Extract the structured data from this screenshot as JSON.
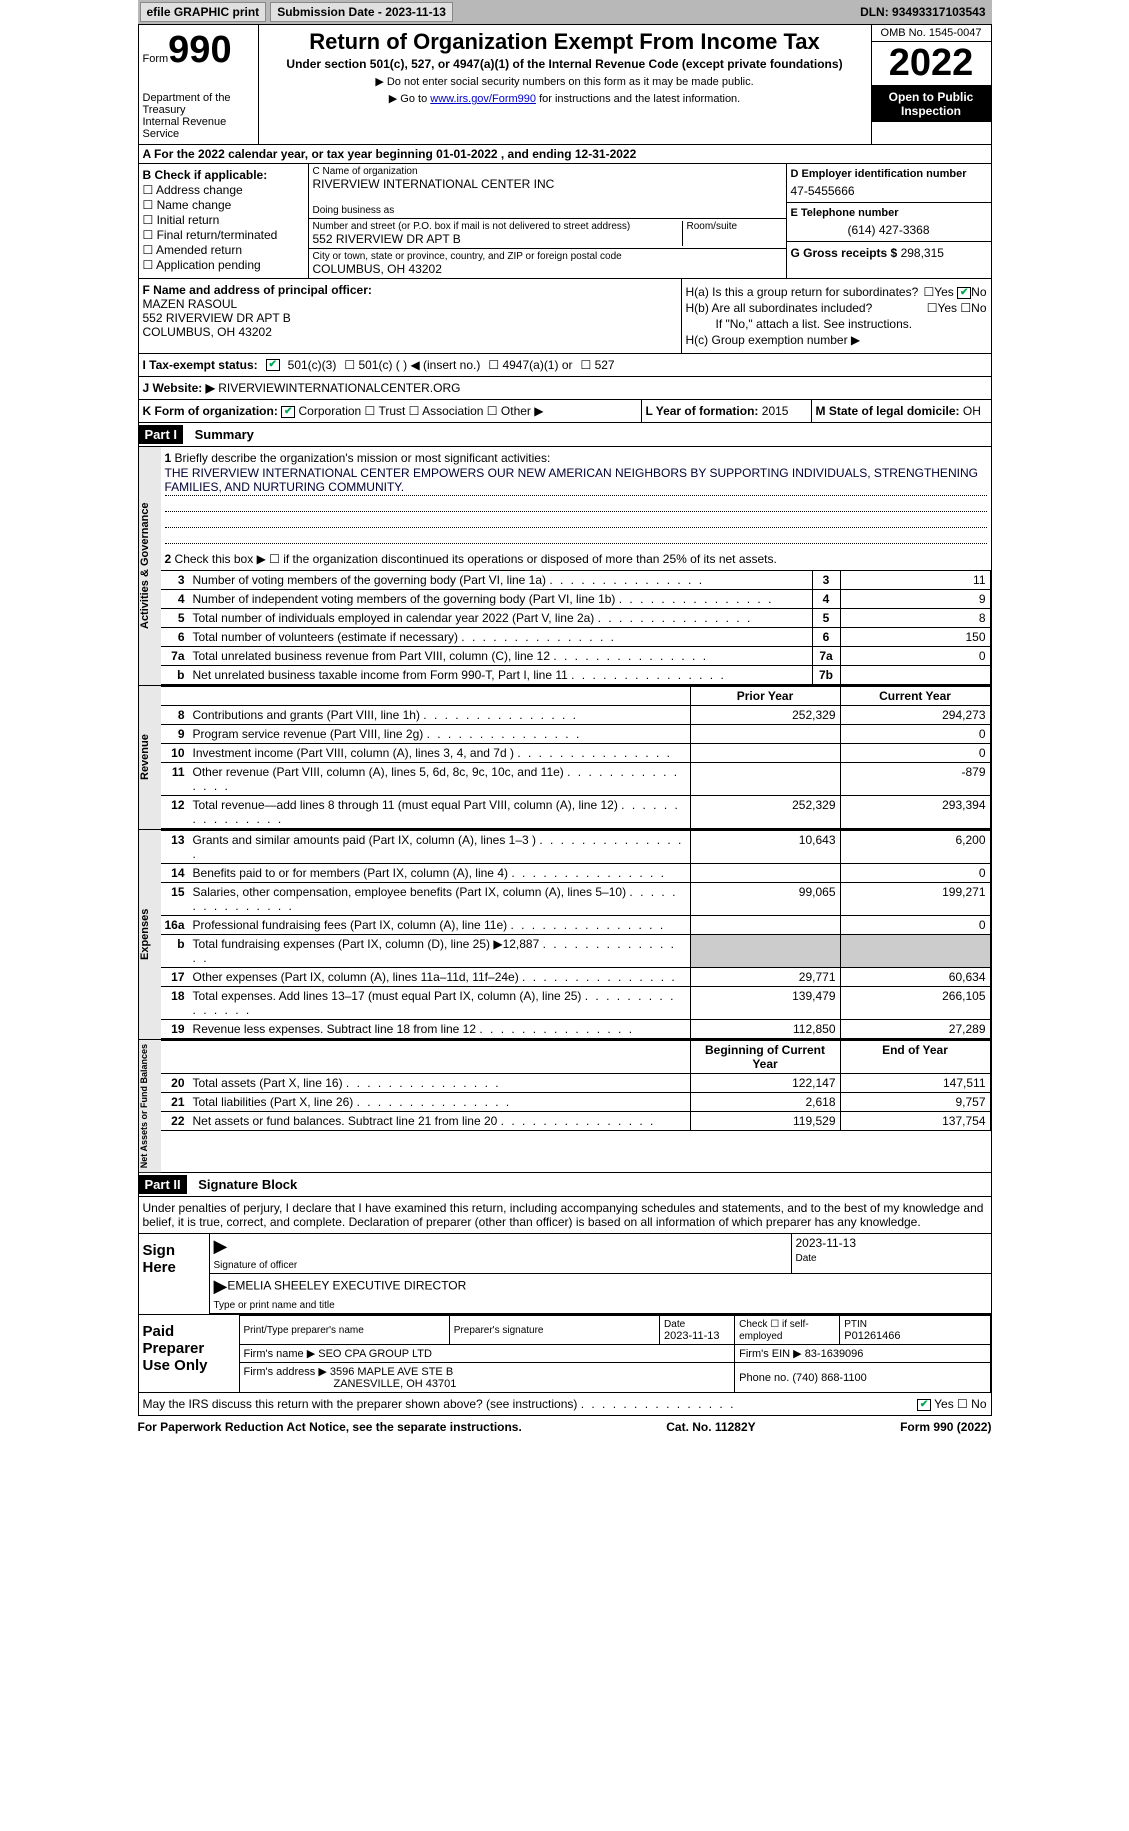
{
  "topbar": {
    "efile": "efile GRAPHIC print",
    "submission": "Submission Date - 2023-11-13",
    "dln": "DLN: 93493317103543"
  },
  "header": {
    "form_label": "Form",
    "form_number": "990",
    "dept": "Department of the Treasury",
    "irs": "Internal Revenue Service",
    "title": "Return of Organization Exempt From Income Tax",
    "subtitle": "Under section 501(c), 527, or 4947(a)(1) of the Internal Revenue Code (except private foundations)",
    "note1": "▶ Do not enter social security numbers on this form as it may be made public.",
    "note2_pre": "▶ Go to ",
    "note2_link": "www.irs.gov/Form990",
    "note2_post": " for instructions and the latest information.",
    "omb": "OMB No. 1545-0047",
    "year": "2022",
    "inspect": "Open to Public Inspection"
  },
  "row_a": "A For the 2022 calendar year, or tax year beginning 01-01-2022    , and ending 12-31-2022",
  "section_b": {
    "title": "B Check if applicable:",
    "items": [
      "Address change",
      "Name change",
      "Initial return",
      "Final return/terminated",
      "Amended return",
      "Application pending"
    ]
  },
  "section_c": {
    "name_label": "C Name of organization",
    "name": "RIVERVIEW INTERNATIONAL CENTER INC",
    "dba_label": "Doing business as",
    "addr_label": "Number and street (or P.O. box if mail is not delivered to street address)",
    "room_label": "Room/suite",
    "addr": "552 RIVERVIEW DR APT B",
    "city_label": "City or town, state or province, country, and ZIP or foreign postal code",
    "city": "COLUMBUS, OH  43202"
  },
  "section_d": {
    "ein_label": "D Employer identification number",
    "ein": "47-5455666",
    "phone_label": "E Telephone number",
    "phone": "(614) 427-3368",
    "gross_label": "G Gross receipts $",
    "gross": "298,315"
  },
  "section_f": {
    "label": "F Name and address of principal officer:",
    "name": "MAZEN RASOUL",
    "addr1": "552 RIVERVIEW DR APT B",
    "addr2": "COLUMBUS, OH  43202"
  },
  "section_h": {
    "ha": "H(a)  Is this a group return for subordinates?",
    "hb": "H(b)  Are all subordinates included?",
    "hb_note": "If \"No,\" attach a list. See instructions.",
    "hc": "H(c)  Group exemption number ▶",
    "yes": "Yes",
    "no": "No"
  },
  "row_i": {
    "label": "I   Tax-exempt status:",
    "opt1": "501(c)(3)",
    "opt2": "501(c) (  ) ◀ (insert no.)",
    "opt3": "4947(a)(1) or",
    "opt4": "527"
  },
  "row_j": {
    "label": "J   Website: ▶",
    "value": "RIVERVIEWINTERNATIONALCENTER.ORG"
  },
  "row_k": {
    "label": "K Form of organization:",
    "opts": [
      "Corporation",
      "Trust",
      "Association",
      "Other ▶"
    ]
  },
  "row_l": {
    "label": "L Year of formation:",
    "value": "2015"
  },
  "row_m": {
    "label": "M State of legal domicile:",
    "value": "OH"
  },
  "part1": {
    "header": "Part I",
    "title": "Summary",
    "line1_label": "Briefly describe the organization's mission or most significant activities:",
    "mission": "THE RIVERVIEW INTERNATIONAL CENTER EMPOWERS OUR NEW AMERICAN NEIGHBORS BY SUPPORTING INDIVIDUALS, STRENGTHENING FAMILIES, AND NURTURING COMMUNITY.",
    "line2": "Check this box ▶ ☐ if the organization discontinued its operations or disposed of more than 25% of its net assets.",
    "sides": {
      "gov": "Activities & Governance",
      "rev": "Revenue",
      "exp": "Expenses",
      "net": "Net Assets or Fund Balances"
    },
    "col_headers": {
      "prior": "Prior Year",
      "current": "Current Year",
      "begin": "Beginning of Current Year",
      "end": "End of Year"
    },
    "rows_gov": [
      {
        "n": "3",
        "d": "Number of voting members of the governing body (Part VI, line 1a)",
        "b": "3",
        "v": "11"
      },
      {
        "n": "4",
        "d": "Number of independent voting members of the governing body (Part VI, line 1b)",
        "b": "4",
        "v": "9"
      },
      {
        "n": "5",
        "d": "Total number of individuals employed in calendar year 2022 (Part V, line 2a)",
        "b": "5",
        "v": "8"
      },
      {
        "n": "6",
        "d": "Total number of volunteers (estimate if necessary)",
        "b": "6",
        "v": "150"
      },
      {
        "n": "7a",
        "d": "Total unrelated business revenue from Part VIII, column (C), line 12",
        "b": "7a",
        "v": "0"
      },
      {
        "n": "b",
        "d": "Net unrelated business taxable income from Form 990-T, Part I, line 11",
        "b": "7b",
        "v": ""
      }
    ],
    "rows_rev": [
      {
        "n": "8",
        "d": "Contributions and grants (Part VIII, line 1h)",
        "p": "252,329",
        "c": "294,273"
      },
      {
        "n": "9",
        "d": "Program service revenue (Part VIII, line 2g)",
        "p": "",
        "c": "0"
      },
      {
        "n": "10",
        "d": "Investment income (Part VIII, column (A), lines 3, 4, and 7d )",
        "p": "",
        "c": "0"
      },
      {
        "n": "11",
        "d": "Other revenue (Part VIII, column (A), lines 5, 6d, 8c, 9c, 10c, and 11e)",
        "p": "",
        "c": "-879"
      },
      {
        "n": "12",
        "d": "Total revenue—add lines 8 through 11 (must equal Part VIII, column (A), line 12)",
        "p": "252,329",
        "c": "293,394"
      }
    ],
    "rows_exp": [
      {
        "n": "13",
        "d": "Grants and similar amounts paid (Part IX, column (A), lines 1–3 )",
        "p": "10,643",
        "c": "6,200"
      },
      {
        "n": "14",
        "d": "Benefits paid to or for members (Part IX, column (A), line 4)",
        "p": "",
        "c": "0"
      },
      {
        "n": "15",
        "d": "Salaries, other compensation, employee benefits (Part IX, column (A), lines 5–10)",
        "p": "99,065",
        "c": "199,271"
      },
      {
        "n": "16a",
        "d": "Professional fundraising fees (Part IX, column (A), line 11e)",
        "p": "",
        "c": "0"
      },
      {
        "n": "b",
        "d": "Total fundraising expenses (Part IX, column (D), line 25) ▶12,887",
        "p": "shaded",
        "c": "shaded"
      },
      {
        "n": "17",
        "d": "Other expenses (Part IX, column (A), lines 11a–11d, 11f–24e)",
        "p": "29,771",
        "c": "60,634"
      },
      {
        "n": "18",
        "d": "Total expenses. Add lines 13–17 (must equal Part IX, column (A), line 25)",
        "p": "139,479",
        "c": "266,105"
      },
      {
        "n": "19",
        "d": "Revenue less expenses. Subtract line 18 from line 12",
        "p": "112,850",
        "c": "27,289"
      }
    ],
    "rows_net": [
      {
        "n": "20",
        "d": "Total assets (Part X, line 16)",
        "p": "122,147",
        "c": "147,511"
      },
      {
        "n": "21",
        "d": "Total liabilities (Part X, line 26)",
        "p": "2,618",
        "c": "9,757"
      },
      {
        "n": "22",
        "d": "Net assets or fund balances. Subtract line 21 from line 20",
        "p": "119,529",
        "c": "137,754"
      }
    ]
  },
  "part2": {
    "header": "Part II",
    "title": "Signature Block",
    "penalties": "Under penalties of perjury, I declare that I have examined this return, including accompanying schedules and statements, and to the best of my knowledge and belief, it is true, correct, and complete. Declaration of preparer (other than officer) is based on all information of which preparer has any knowledge.",
    "sign_here": "Sign Here",
    "sig_officer": "Signature of officer",
    "sig_date": "2023-11-13",
    "date_label": "Date",
    "name_title": "EMELIA SHEELEY  EXECUTIVE DIRECTOR",
    "name_title_label": "Type or print name and title",
    "paid": "Paid Preparer Use Only",
    "prep_name_label": "Print/Type preparer's name",
    "prep_sig_label": "Preparer's signature",
    "prep_date_label": "Date",
    "prep_date": "2023-11-13",
    "self_emp": "Check ☐ if self-employed",
    "ptin_label": "PTIN",
    "ptin": "P01261466",
    "firm_name_label": "Firm's name    ▶",
    "firm_name": "SEO CPA GROUP LTD",
    "firm_ein_label": "Firm's EIN ▶",
    "firm_ein": "83-1639096",
    "firm_addr_label": "Firm's address ▶",
    "firm_addr": "3596 MAPLE AVE STE B",
    "firm_city": "ZANESVILLE, OH  43701",
    "firm_phone_label": "Phone no.",
    "firm_phone": "(740) 868-1100",
    "discuss": "May the IRS discuss this return with the preparer shown above? (see instructions)"
  },
  "footer": {
    "left": "For Paperwork Reduction Act Notice, see the separate instructions.",
    "mid": "Cat. No. 11282Y",
    "right": "Form 990 (2022)"
  }
}
